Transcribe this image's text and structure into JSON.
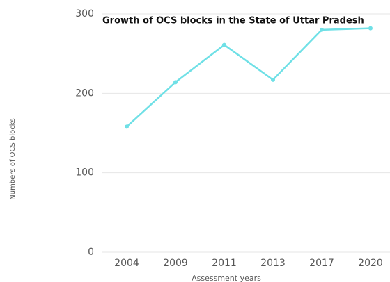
{
  "chart_data": {
    "type": "line",
    "title": "Growth of OCS blocks in the State of Uttar Pradesh",
    "x_label": "Assessment years",
    "y_label": "Numbers of OCS blocks",
    "categories": [
      "2004",
      "2009",
      "2011",
      "2013",
      "2017",
      "2020"
    ],
    "series": [
      {
        "name": "OCS blocks",
        "color": "#6fe0e6",
        "values": [
          158,
          214,
          261,
          217,
          280,
          282
        ]
      }
    ],
    "ylim": [
      0,
      300
    ],
    "yticks": [
      0,
      100,
      200,
      300
    ],
    "grid": true
  }
}
